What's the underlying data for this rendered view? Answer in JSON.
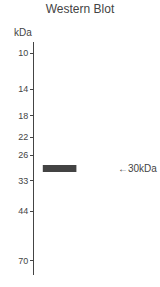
{
  "chart_data": {
    "type": "blot",
    "title": "Western Blot",
    "ylabel": "kDa",
    "values": [
      29.5
    ],
    "color": "#222222",
    "annotations": [
      {
        "text": "←30kDa",
        "y": 29.5
      }
    ],
    "log": "y",
    "ylim": [
      9,
      80
    ],
    "yticks": [
      70,
      44,
      33,
      26,
      22,
      18,
      14,
      10
    ],
    "grid": false,
    "tick_labels": "y"
  }
}
